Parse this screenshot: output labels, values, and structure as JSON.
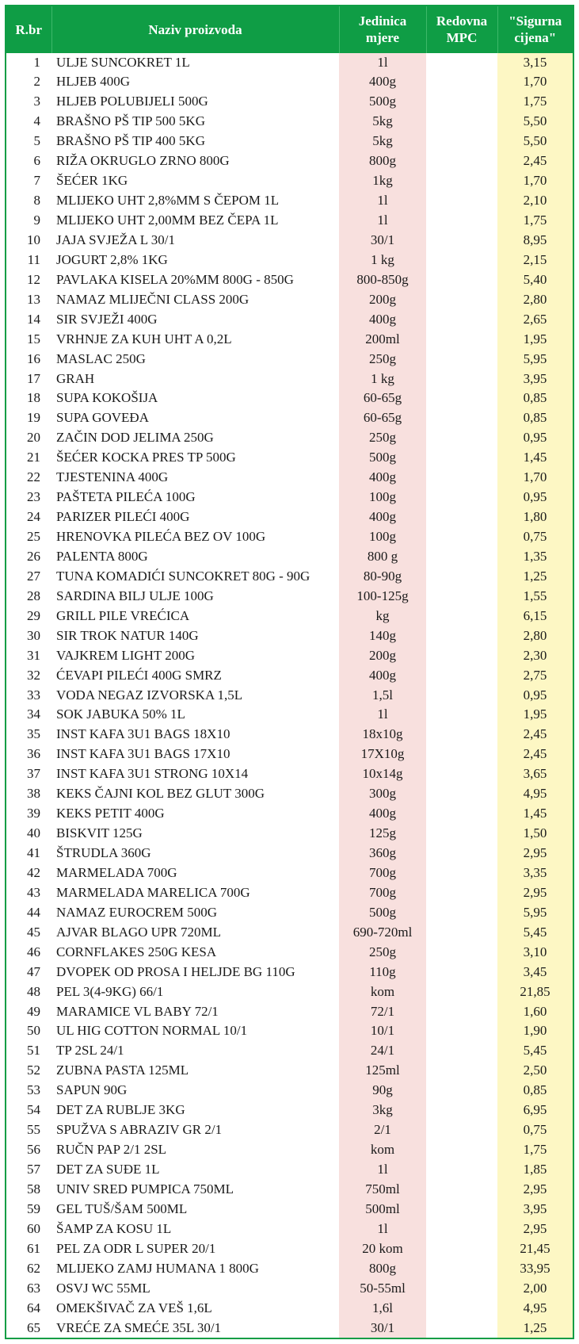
{
  "table": {
    "columns": {
      "rbr": "R.br",
      "name": "Naziv proizvoda",
      "unit": "Jedinica mjere",
      "mpc": "Redovna MPC",
      "price": "\"Sigurna cijena\""
    },
    "rows": [
      {
        "n": 1,
        "name": "ULJE SUNCOKRET 1L",
        "unit": "1l",
        "mpc": "",
        "price": "3,15"
      },
      {
        "n": 2,
        "name": "HLJEB 400G",
        "unit": "400g",
        "mpc": "",
        "price": "1,70"
      },
      {
        "n": 3,
        "name": "HLJEB POLUBIJELI 500G",
        "unit": "500g",
        "mpc": "",
        "price": "1,75"
      },
      {
        "n": 4,
        "name": "BRAŠNO PŠ TIP 500 5KG",
        "unit": "5kg",
        "mpc": "",
        "price": "5,50"
      },
      {
        "n": 5,
        "name": "BRAŠNO PŠ TIP 400 5KG",
        "unit": "5kg",
        "mpc": "",
        "price": "5,50"
      },
      {
        "n": 6,
        "name": "RIŽA OKRUGLO ZRNO 800G",
        "unit": "800g",
        "mpc": "",
        "price": "2,45"
      },
      {
        "n": 7,
        "name": "ŠEĆER 1KG",
        "unit": "1kg",
        "mpc": "",
        "price": "1,70"
      },
      {
        "n": 8,
        "name": "MLIJEKO UHT 2,8%MM S ČEPOM 1L",
        "unit": "1l",
        "mpc": "",
        "price": "2,10"
      },
      {
        "n": 9,
        "name": "MLIJEKO UHT 2,00MM BEZ ČEPA 1L",
        "unit": "1l",
        "mpc": "",
        "price": "1,75"
      },
      {
        "n": 10,
        "name": "JAJA SVJEŽA L 30/1",
        "unit": "30/1",
        "mpc": "",
        "price": "8,95"
      },
      {
        "n": 11,
        "name": "JOGURT 2,8% 1KG",
        "unit": "1 kg",
        "mpc": "",
        "price": "2,15"
      },
      {
        "n": 12,
        "name": "PAVLAKA KISELA 20%MM 800G - 850G",
        "unit": "800-850g",
        "mpc": "",
        "price": "5,40"
      },
      {
        "n": 13,
        "name": "NAMAZ MLIJEČNI CLASS 200G",
        "unit": "200g",
        "mpc": "",
        "price": "2,80"
      },
      {
        "n": 14,
        "name": "SIR SVJEŽI 400G",
        "unit": "400g",
        "mpc": "",
        "price": "2,65"
      },
      {
        "n": 15,
        "name": "VRHNJE ZA KUH UHT A 0,2L",
        "unit": "200ml",
        "mpc": "",
        "price": "1,95"
      },
      {
        "n": 16,
        "name": "MASLAC 250G",
        "unit": "250g",
        "mpc": "",
        "price": "5,95"
      },
      {
        "n": 17,
        "name": "GRAH",
        "unit": "1 kg",
        "mpc": "",
        "price": "3,95"
      },
      {
        "n": 18,
        "name": "SUPA KOKOŠIJA",
        "unit": "60-65g",
        "mpc": "",
        "price": "0,85"
      },
      {
        "n": 19,
        "name": "SUPA GOVEĐA",
        "unit": "60-65g",
        "mpc": "",
        "price": "0,85"
      },
      {
        "n": 20,
        "name": "ZAČIN DOD JELIMA 250G",
        "unit": "250g",
        "mpc": "",
        "price": "0,95"
      },
      {
        "n": 21,
        "name": "ŠEĆER KOCKA PRES TP 500G",
        "unit": "500g",
        "mpc": "",
        "price": "1,45"
      },
      {
        "n": 22,
        "name": "TJESTENINA 400G",
        "unit": "400g",
        "mpc": "",
        "price": "1,70"
      },
      {
        "n": 23,
        "name": "PAŠTETA PILEĆA 100G",
        "unit": "100g",
        "mpc": "",
        "price": "0,95"
      },
      {
        "n": 24,
        "name": "PARIZER PILEĆI 400G",
        "unit": "400g",
        "mpc": "",
        "price": "1,80"
      },
      {
        "n": 25,
        "name": "HRENOVKA PILEĆA BEZ OV 100G",
        "unit": "100g",
        "mpc": "",
        "price": "0,75"
      },
      {
        "n": 26,
        "name": "PALENTA 800G",
        "unit": "800 g",
        "mpc": "",
        "price": "1,35"
      },
      {
        "n": 27,
        "name": "TUNA KOMADIĆI SUNCOKRET 80G - 90G",
        "unit": "80-90g",
        "mpc": "",
        "price": "1,25"
      },
      {
        "n": 28,
        "name": "SARDINA BILJ ULJE 100G",
        "unit": "100-125g",
        "mpc": "",
        "price": "1,55"
      },
      {
        "n": 29,
        "name": "GRILL PILE VREĆICA",
        "unit": "kg",
        "mpc": "",
        "price": "6,15"
      },
      {
        "n": 30,
        "name": "SIR TROK NATUR 140G",
        "unit": "140g",
        "mpc": "",
        "price": "2,80"
      },
      {
        "n": 31,
        "name": "VAJKREM LIGHT 200G",
        "unit": "200g",
        "mpc": "",
        "price": "2,30"
      },
      {
        "n": 32,
        "name": "ĆEVAPI PILEĆI 400G SMRZ",
        "unit": "400g",
        "mpc": "",
        "price": "2,75"
      },
      {
        "n": 33,
        "name": "VODA NEGAZ IZVORSKA 1,5L",
        "unit": "1,5l",
        "mpc": "",
        "price": "0,95"
      },
      {
        "n": 34,
        "name": "SOK JABUKA 50% 1L",
        "unit": "1l",
        "mpc": "",
        "price": "1,95"
      },
      {
        "n": 35,
        "name": "INST KAFA  3U1 BAGS 18X10",
        "unit": "18x10g",
        "mpc": "",
        "price": "2,45"
      },
      {
        "n": 36,
        "name": "INST KAFA  3U1 BAGS 17X10",
        "unit": "17X10g",
        "mpc": "",
        "price": "2,45"
      },
      {
        "n": 37,
        "name": "INST KAFA 3U1 STRONG 10X14",
        "unit": "10x14g",
        "mpc": "",
        "price": "3,65"
      },
      {
        "n": 38,
        "name": "KEKS ČAJNI KOL BEZ GLUT 300G",
        "unit": "300g",
        "mpc": "",
        "price": "4,95"
      },
      {
        "n": 39,
        "name": "KEKS PETIT 400G",
        "unit": "400g",
        "mpc": "",
        "price": "1,45"
      },
      {
        "n": 40,
        "name": "BISKVIT 125G",
        "unit": "125g",
        "mpc": "",
        "price": "1,50"
      },
      {
        "n": 41,
        "name": "ŠTRUDLA 360G",
        "unit": "360g",
        "mpc": "",
        "price": "2,95"
      },
      {
        "n": 42,
        "name": "MARMELADA 700G",
        "unit": "700g",
        "mpc": "",
        "price": "3,35"
      },
      {
        "n": 43,
        "name": "MARMELADA MARELICA 700G",
        "unit": "700g",
        "mpc": "",
        "price": "2,95"
      },
      {
        "n": 44,
        "name": "NAMAZ EUROCREM 500G",
        "unit": "500g",
        "mpc": "",
        "price": "5,95"
      },
      {
        "n": 45,
        "name": "AJVAR BLAGO UPR 720ML",
        "unit": "690-720ml",
        "mpc": "",
        "price": "5,45"
      },
      {
        "n": 46,
        "name": "CORNFLAKES 250G KESA",
        "unit": "250g",
        "mpc": "",
        "price": "3,10"
      },
      {
        "n": 47,
        "name": "DVOPEK OD PROSA I HELJDE BG 110G",
        "unit": "110g",
        "mpc": "",
        "price": "3,45"
      },
      {
        "n": 48,
        "name": "PEL 3(4-9KG) 66/1",
        "unit": "kom",
        "mpc": "",
        "price": "21,85"
      },
      {
        "n": 49,
        "name": "MARAMICE VL BABY 72/1",
        "unit": "72/1",
        "mpc": "",
        "price": "1,60"
      },
      {
        "n": 50,
        "name": "UL HIG COTTON NORMAL 10/1",
        "unit": "10/1",
        "mpc": "",
        "price": "1,90"
      },
      {
        "n": 51,
        "name": "TP 2SL 24/1",
        "unit": "24/1",
        "mpc": "",
        "price": "5,45"
      },
      {
        "n": 52,
        "name": "ZUBNA PASTA 125ML",
        "unit": "125ml",
        "mpc": "",
        "price": "2,50"
      },
      {
        "n": 53,
        "name": "SAPUN 90G",
        "unit": "90g",
        "mpc": "",
        "price": "0,85"
      },
      {
        "n": 54,
        "name": "DET ZA RUBLJE 3KG",
        "unit": "3kg",
        "mpc": "",
        "price": "6,95"
      },
      {
        "n": 55,
        "name": "SPUŽVA S ABRAZIV GR  2/1",
        "unit": "2/1",
        "mpc": "",
        "price": "0,75"
      },
      {
        "n": 56,
        "name": "RUČN PAP 2/1 2SL",
        "unit": "kom",
        "mpc": "",
        "price": "1,75"
      },
      {
        "n": 57,
        "name": "DET  ZA SUĐE 1L",
        "unit": "1l",
        "mpc": "",
        "price": "1,85"
      },
      {
        "n": 58,
        "name": "UNIV SRED  PUMPICA 750ML",
        "unit": "750ml",
        "mpc": "",
        "price": "2,95"
      },
      {
        "n": 59,
        "name": "GEL TUŠ/ŠAM 500ML",
        "unit": "500ml",
        "mpc": "",
        "price": "3,95"
      },
      {
        "n": 60,
        "name": "ŠAMP  ZA KOSU 1L",
        "unit": "1l",
        "mpc": "",
        "price": "2,95"
      },
      {
        "n": 61,
        "name": "PEL ZA ODR L SUPER 20/1",
        "unit": "20 kom",
        "mpc": "",
        "price": "21,45"
      },
      {
        "n": 62,
        "name": "MLIJEKO ZAMJ HUMANA 1 800G",
        "unit": "800g",
        "mpc": "",
        "price": "33,95"
      },
      {
        "n": 63,
        "name": "OSVJ WC   55ML",
        "unit": "50-55ml",
        "mpc": "",
        "price": "2,00"
      },
      {
        "n": 64,
        "name": "OMEKŠIVAČ ZA VEŠ 1,6L",
        "unit": "1,6l",
        "mpc": "",
        "price": "4,95"
      },
      {
        "n": 65,
        "name": "VREĆE ZA SMEĆE  35L 30/1",
        "unit": "30/1",
        "mpc": "",
        "price": "1,25"
      }
    ],
    "colors": {
      "header_bg": "#0f9d45",
      "header_fg": "#ffffff",
      "unit_bg": "#f8e0de",
      "price_bg": "#fdf7c4",
      "border": "#0f9d45",
      "text": "#1a1a1a"
    }
  }
}
